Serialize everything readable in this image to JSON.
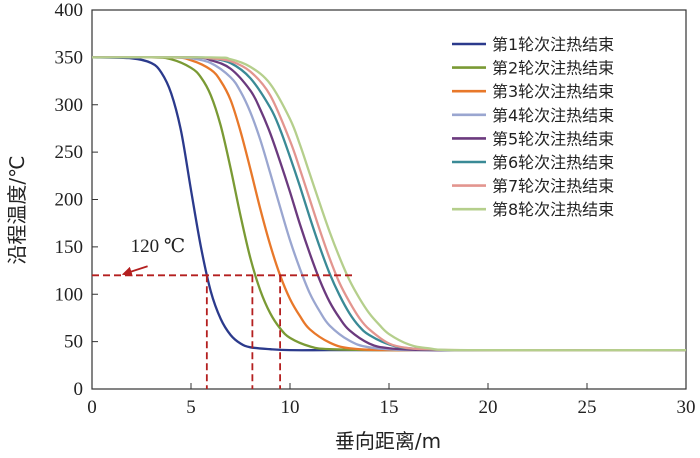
{
  "chart_data": {
    "type": "line",
    "xlabel": "垂向距离/m",
    "ylabel": "沿程温度/℃",
    "xlim": [
      0,
      30
    ],
    "ylim": [
      0,
      400
    ],
    "xticks": [
      "0",
      "5",
      "10",
      "15",
      "20",
      "25",
      "30"
    ],
    "yticks": [
      "0",
      "50",
      "100",
      "150",
      "200",
      "250",
      "300",
      "350",
      "400"
    ],
    "grid": false,
    "legend_position": "top-right",
    "series": [
      {
        "name": "第1轮次注热结束",
        "color": "#2b3a8c",
        "x": [
          0,
          2,
          3,
          3.5,
          4,
          4.5,
          5,
          5.5,
          6,
          6.5,
          7,
          7.5,
          8,
          9,
          10,
          12,
          15,
          20,
          30
        ],
        "y": [
          350,
          349,
          344,
          334,
          312,
          272,
          210,
          150,
          103,
          74,
          57,
          48,
          44,
          42,
          41,
          41,
          41,
          41,
          41
        ]
      },
      {
        "name": "第2轮次注热结束",
        "color": "#7a9a34",
        "x": [
          0,
          3,
          4,
          5,
          5.5,
          6,
          6.5,
          7,
          7.5,
          8,
          8.5,
          9,
          9.5,
          10,
          11,
          12,
          15,
          20,
          30
        ],
        "y": [
          350,
          350,
          348,
          339,
          329,
          310,
          278,
          233,
          183,
          138,
          104,
          80,
          64,
          54,
          45,
          42,
          41,
          41,
          41
        ]
      },
      {
        "name": "第3轮次注热结束",
        "color": "#e8782a",
        "x": [
          0,
          4,
          5,
          6,
          6.5,
          7,
          7.5,
          8,
          8.5,
          9,
          9.5,
          10,
          10.5,
          11,
          12,
          13,
          15,
          20,
          30
        ],
        "y": [
          350,
          350,
          347,
          337,
          325,
          305,
          272,
          232,
          190,
          152,
          120,
          95,
          77,
          63,
          49,
          43,
          41,
          41,
          41
        ]
      },
      {
        "name": "第4轮次注热结束",
        "color": "#9aa6d0",
        "x": [
          0,
          4,
          5,
          6,
          7,
          7.5,
          8,
          8.5,
          9,
          9.5,
          10,
          10.5,
          11,
          11.5,
          12,
          13,
          14,
          16,
          20,
          30
        ],
        "y": [
          350,
          350,
          349,
          344,
          329,
          314,
          292,
          263,
          228,
          192,
          157,
          127,
          101,
          82,
          67,
          51,
          44,
          41,
          41,
          41
        ]
      },
      {
        "name": "第5轮次注热结束",
        "color": "#6b3a7e",
        "x": [
          0,
          5,
          6,
          7,
          8,
          8.5,
          9,
          9.5,
          10,
          10.5,
          11,
          11.5,
          12,
          12.5,
          13,
          14,
          15,
          17,
          20,
          30
        ],
        "y": [
          350,
          350,
          347,
          338,
          315,
          295,
          270,
          240,
          208,
          174,
          143,
          115,
          92,
          75,
          62,
          48,
          43,
          41,
          41,
          41
        ]
      },
      {
        "name": "第6轮次注热结束",
        "color": "#3a8a96",
        "x": [
          0,
          5,
          6,
          7,
          8,
          9,
          9.5,
          10,
          10.5,
          11,
          11.5,
          12,
          12.5,
          13,
          13.5,
          14,
          15,
          16,
          18,
          20,
          30
        ],
        "y": [
          350,
          350,
          349,
          344,
          328,
          297,
          274,
          245,
          214,
          181,
          150,
          122,
          99,
          80,
          66,
          57,
          47,
          43,
          41,
          41,
          41
        ]
      },
      {
        "name": "第7轮次注热结束",
        "color": "#e3958f",
        "x": [
          0,
          5,
          6,
          7,
          8,
          9,
          10,
          10.5,
          11,
          11.5,
          12,
          12.5,
          13,
          13.5,
          14,
          15,
          16,
          17,
          19,
          30
        ],
        "y": [
          350,
          350,
          349,
          346,
          335,
          310,
          262,
          232,
          200,
          168,
          138,
          112,
          92,
          75,
          63,
          48,
          43,
          42,
          41,
          41
        ]
      },
      {
        "name": "第8轮次注热结束",
        "color": "#b5cf8c",
        "x": [
          0,
          6,
          7,
          8,
          9,
          10,
          10.5,
          11,
          11.5,
          12,
          12.5,
          13,
          13.5,
          14,
          14.5,
          15,
          16,
          17,
          19,
          30
        ],
        "y": [
          350,
          350,
          348,
          340,
          322,
          285,
          258,
          227,
          196,
          166,
          139,
          115,
          96,
          80,
          68,
          58,
          47,
          43,
          41,
          41
        ]
      }
    ],
    "annotations": [
      {
        "text": "120 ℃",
        "y": 120,
        "x_end": 13.2,
        "arrow_start": [
          2.0,
          138
        ],
        "arrow_end": [
          1.7,
          122
        ],
        "drop_lines_x": [
          5.8,
          8.1,
          9.5
        ]
      }
    ]
  }
}
